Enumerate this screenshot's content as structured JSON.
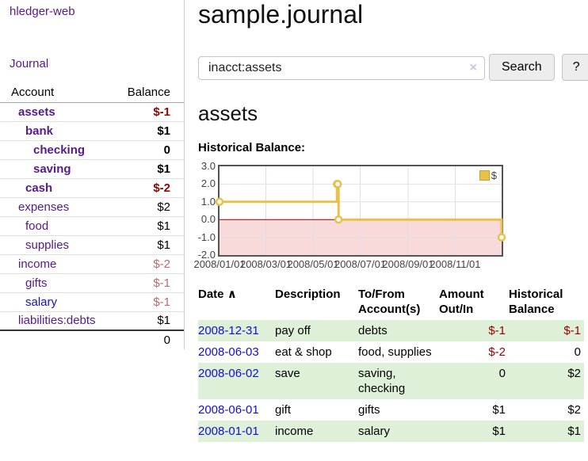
{
  "app": {
    "brand": "hledger-web"
  },
  "sidebar": {
    "journal_link": "Journal",
    "account_header": "Account",
    "balance_header": "Balance",
    "accounts": [
      {
        "name": "assets",
        "balance": "$-1"
      },
      {
        "name": "bank",
        "balance": "$1"
      },
      {
        "name": "checking",
        "balance": "0"
      },
      {
        "name": "saving",
        "balance": "$1"
      },
      {
        "name": "cash",
        "balance": "$-2"
      },
      {
        "name": "expenses",
        "balance": "$2"
      },
      {
        "name": "food",
        "balance": "$1"
      },
      {
        "name": "supplies",
        "balance": "$1"
      },
      {
        "name": "income",
        "balance": "$-2"
      },
      {
        "name": "gifts",
        "balance": "$-1"
      },
      {
        "name": "salary",
        "balance": "$-1"
      },
      {
        "name": "liabilities:debts",
        "balance": "$1"
      }
    ],
    "total": "0"
  },
  "main": {
    "title": "sample.journal",
    "search": {
      "value": "inacct:assets",
      "clear_icon": "×",
      "search_button": "Search",
      "help_button": "?"
    },
    "account_heading": "assets",
    "chart_label": "Historical Balance:"
  },
  "register": {
    "headers": {
      "date": "Date",
      "sort_icon": "∧",
      "description": "Description",
      "accounts": "To/From\nAccount(s)",
      "amount": "Amount\nOut/In",
      "balance": "Historical\nBalance"
    },
    "rows": [
      {
        "date": "2008-12-31",
        "description": "pay off",
        "accounts": "debts",
        "amount": "$-1",
        "balance": "$-1"
      },
      {
        "date": "2008-06-03",
        "description": "eat & shop",
        "accounts": "food, supplies",
        "amount": "$-2",
        "balance": "0"
      },
      {
        "date": "2008-06-02",
        "description": "save",
        "accounts": "saving,\nchecking",
        "amount": "0",
        "balance": "$2"
      },
      {
        "date": "2008-06-01",
        "description": "gift",
        "accounts": "gifts",
        "amount": "$1",
        "balance": "$2"
      },
      {
        "date": "2008-01-01",
        "description": "income",
        "accounts": "salary",
        "amount": "$1",
        "balance": "$1"
      }
    ]
  },
  "chart_data": {
    "type": "line",
    "style": "step",
    "title": "Historical Balance:",
    "series": [
      {
        "name": "$",
        "color": "#e8c04a",
        "points": [
          {
            "x": "2008-01-01",
            "y": 1
          },
          {
            "x": "2008-06-01",
            "y": 2
          },
          {
            "x": "2008-06-02",
            "y": 2
          },
          {
            "x": "2008-06-03",
            "y": 0
          },
          {
            "x": "2008-12-31",
            "y": -1
          }
        ]
      }
    ],
    "x_range": [
      "2008-01-01",
      "2008-12-31"
    ],
    "ylim": [
      -2,
      3
    ],
    "yticks": [
      "3.0",
      "2.0",
      "1.0",
      "0.0",
      "-1.0",
      "-2.0"
    ],
    "xticks": [
      {
        "label": "2008/01/01",
        "date": "2008-01-01"
      },
      {
        "label": "2008/03/01",
        "date": "2008-03-01"
      },
      {
        "label": "2008/05/01",
        "date": "2008-05-01"
      },
      {
        "label": "2008/07/01",
        "date": "2008-07-01"
      },
      {
        "label": "2008/09/01",
        "date": "2008-09-01"
      },
      {
        "label": "2008/11/01",
        "date": "2008-11-01"
      }
    ],
    "legend": {
      "position": "top-right",
      "entries": [
        {
          "label": "$",
          "color": "#e8c04a"
        }
      ]
    },
    "grid": true,
    "negative_region_color": "#f9dada",
    "zero_line_color": "#8b0000",
    "grid_color": "#e0e0e0",
    "border_color": "#545454"
  },
  "colors": {
    "link_purple": "#551a8b",
    "link_blue": "#0f0fd9",
    "negative_strong": "#990000",
    "negative_soft": "#b96c72",
    "row_stripe_green": "#dff0d8"
  }
}
